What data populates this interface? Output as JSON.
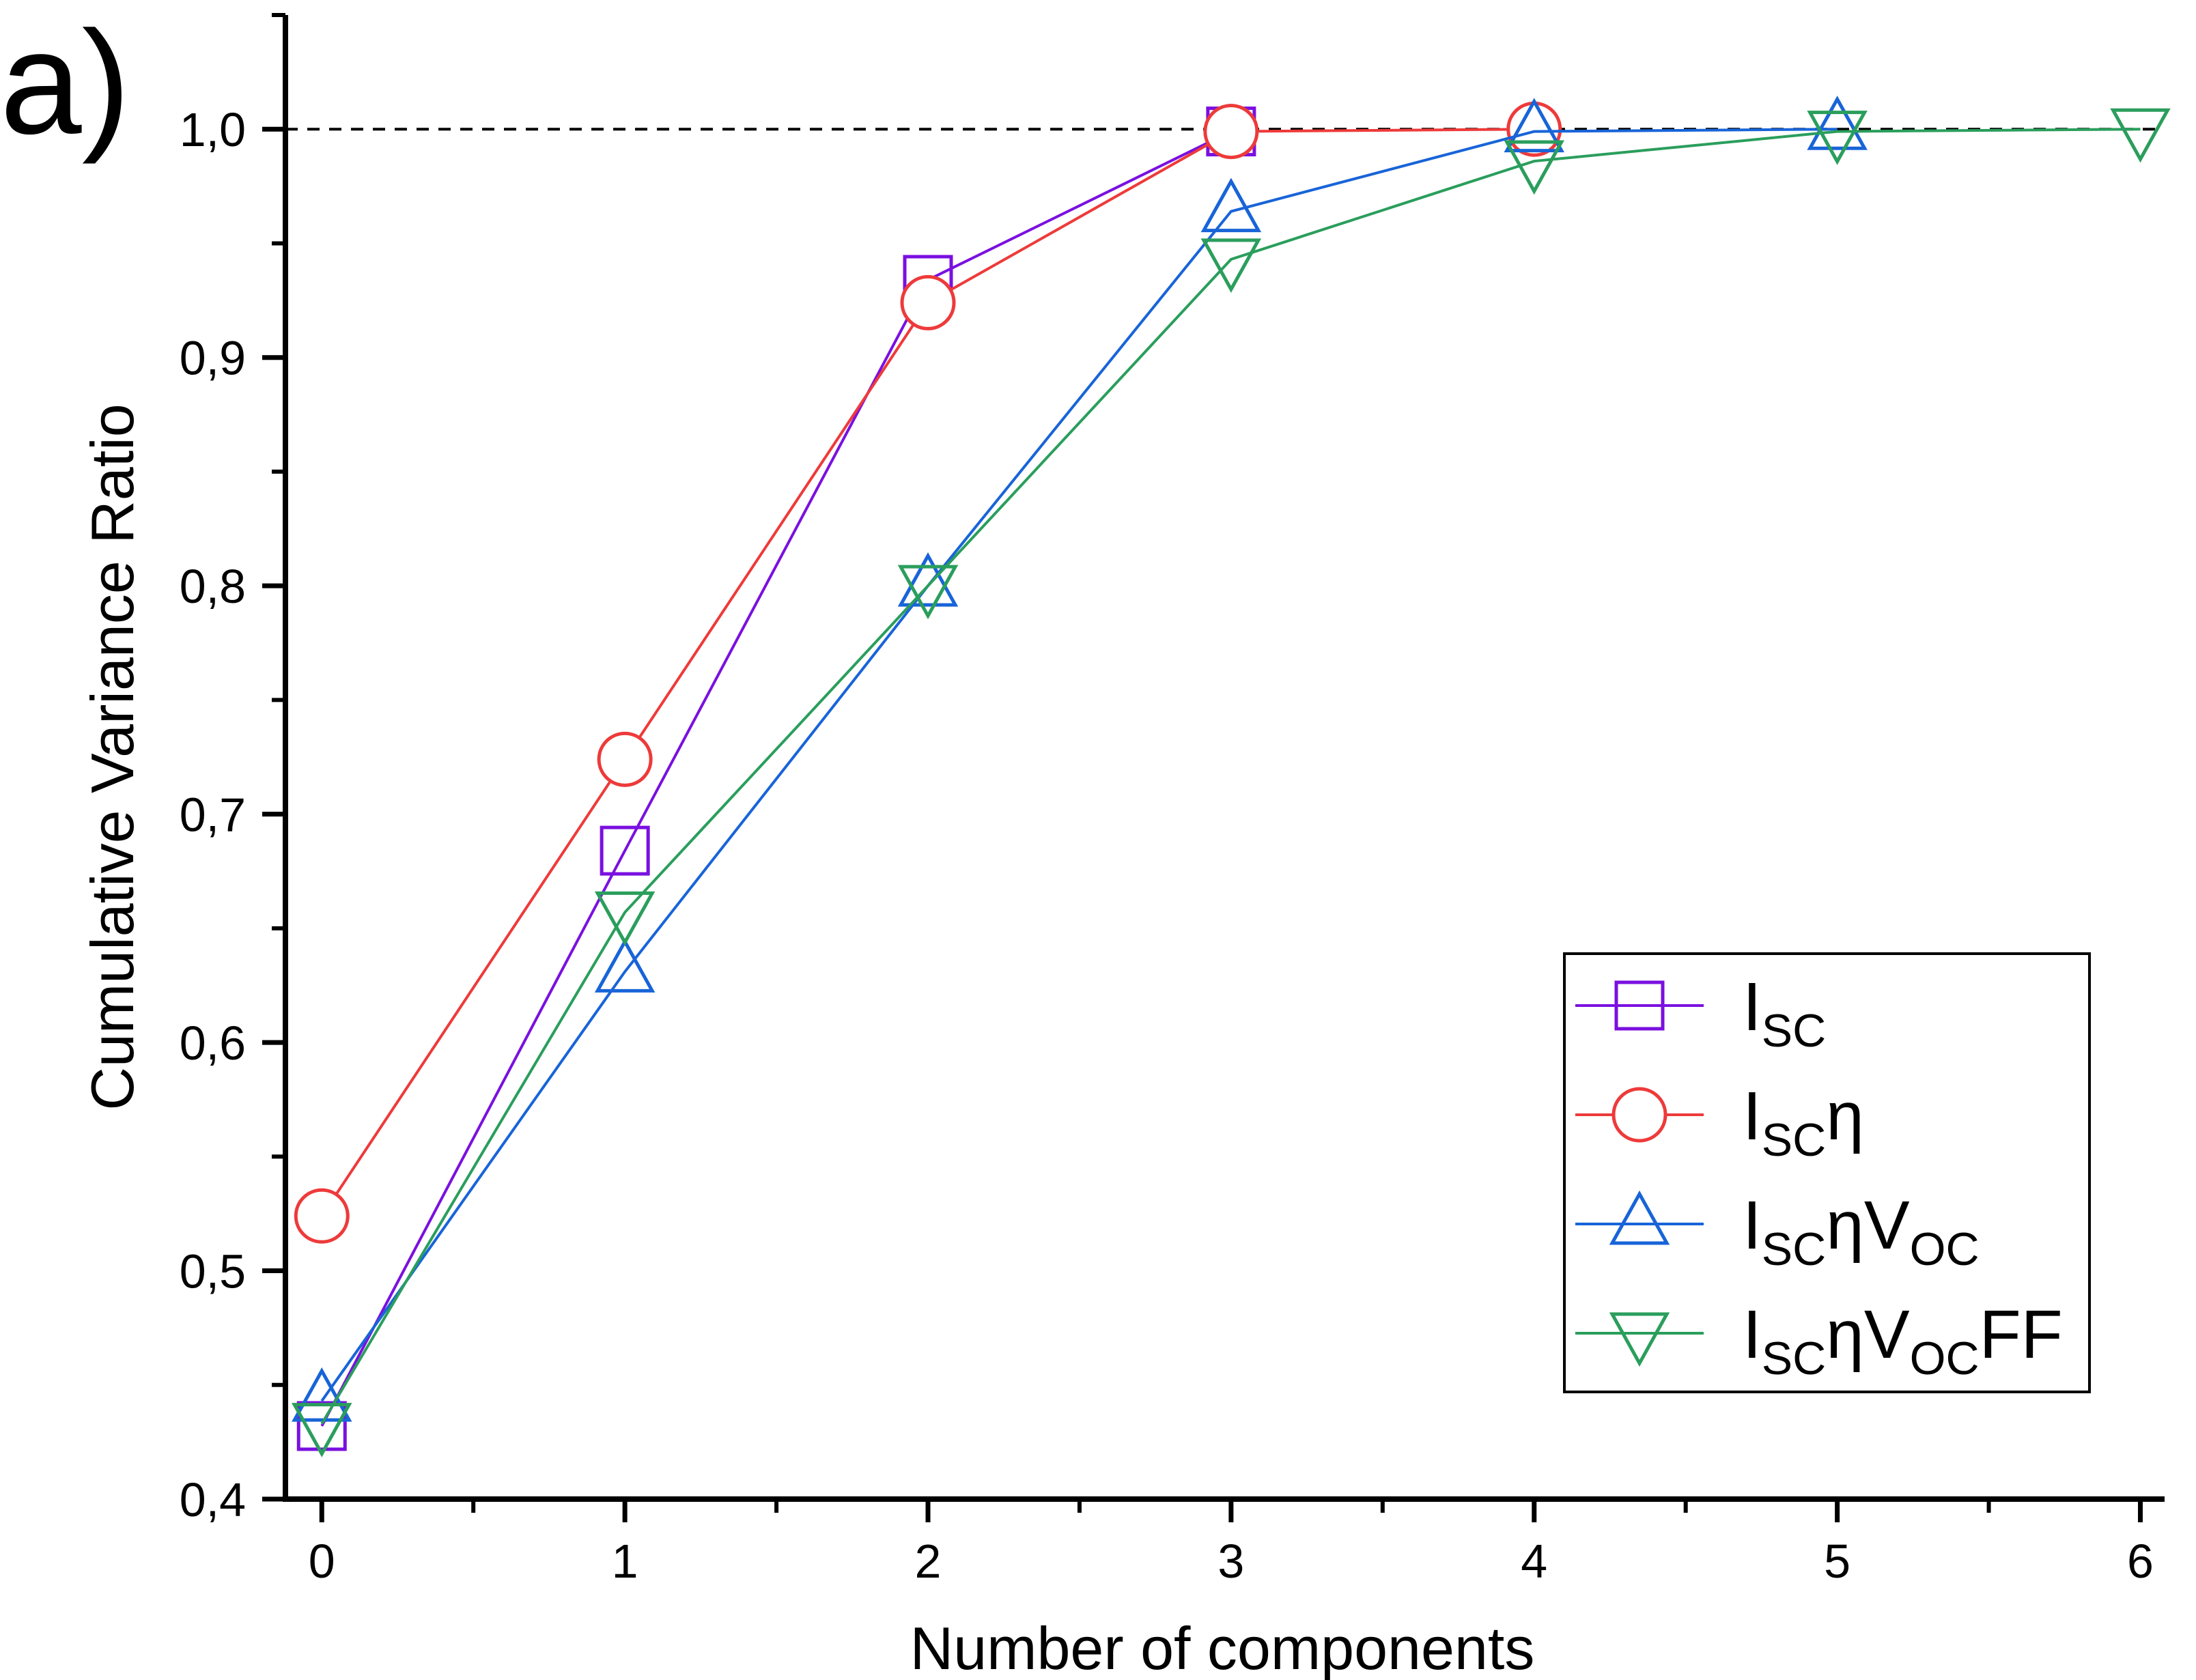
{
  "panel_label": "a)",
  "chart_data": {
    "type": "line",
    "title": "",
    "xlabel": "Number of components",
    "ylabel": "Cumulative Variance Ratio",
    "xlim": [
      -0.12,
      6.08
    ],
    "ylim": [
      0.4,
      1.05
    ],
    "x_ticks": [
      0,
      1,
      2,
      3,
      4,
      5,
      6
    ],
    "x_tick_labels": [
      "0",
      "1",
      "2",
      "3",
      "4",
      "5",
      "6"
    ],
    "y_ticks": [
      0.4,
      0.5,
      0.6,
      0.7,
      0.8,
      0.9,
      1.0
    ],
    "y_tick_labels": [
      "0,4",
      "0,5",
      "0,6",
      "0,7",
      "0,8",
      "0,9",
      "1,0"
    ],
    "y_minor_step": 0.05,
    "grid": false,
    "reference_line": {
      "y": 1.0,
      "style": "dashed",
      "color": "#000000"
    },
    "legend_position": "bottom-right",
    "series": [
      {
        "legend": {
          "base": "I",
          "sub1": "SC",
          "mid": "",
          "sub2": "",
          "tail": ""
        },
        "color": "#7a10e0",
        "marker": "square",
        "x": [
          0,
          1,
          2,
          3
        ],
        "y": [
          0.432,
          0.684,
          0.934,
          0.999
        ]
      },
      {
        "legend": {
          "base": "I",
          "sub1": "SC",
          "mid": "η",
          "sub2": "",
          "tail": ""
        },
        "color": "#ee3a3a",
        "marker": "circle",
        "x": [
          0,
          1,
          2,
          3,
          4
        ],
        "y": [
          0.524,
          0.724,
          0.924,
          0.999,
          1.0
        ]
      },
      {
        "legend": {
          "base": "I",
          "sub1": "SC",
          "mid": "ηV",
          "sub2": "OC",
          "tail": ""
        },
        "color": "#1864d8",
        "marker": "triangle-up",
        "x": [
          0,
          1,
          2,
          3,
          4,
          5
        ],
        "y": [
          0.443,
          0.631,
          0.8,
          0.964,
          0.999,
          1.0
        ]
      },
      {
        "legend": {
          "base": "I",
          "sub1": "SC",
          "mid": "ηV",
          "sub2": "OC",
          "tail": "FF"
        },
        "color": "#2a9e5c",
        "marker": "triangle-down",
        "x": [
          0,
          1,
          2,
          3,
          4,
          5,
          6
        ],
        "y": [
          0.433,
          0.657,
          0.8,
          0.943,
          0.986,
          0.999,
          1.0
        ]
      }
    ]
  }
}
